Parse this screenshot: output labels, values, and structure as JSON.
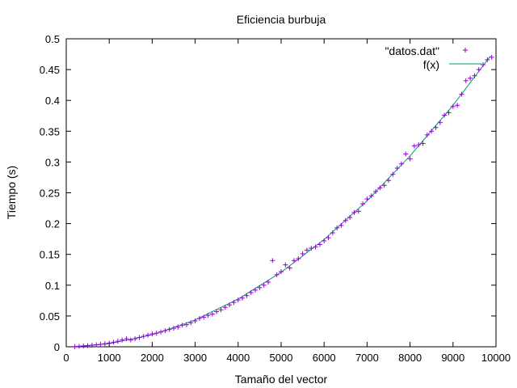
{
  "chart_data": {
    "type": "scatter",
    "title": "Eficiencia burbuja",
    "xlabel": "Tamaño del vector",
    "ylabel": "Tiempo (s)",
    "xlim": [
      0,
      10000
    ],
    "ylim": [
      0,
      0.5
    ],
    "x_ticks": [
      0,
      1000,
      2000,
      3000,
      4000,
      5000,
      6000,
      7000,
      8000,
      9000,
      10000
    ],
    "x_tick_labels": [
      "0",
      "1000",
      "2000",
      "3000",
      "4000",
      "5000",
      "6000",
      "7000",
      "8000",
      "9000",
      "10000"
    ],
    "y_ticks": [
      0,
      0.05,
      0.1,
      0.15,
      0.2,
      0.25,
      0.3,
      0.35,
      0.4,
      0.45,
      0.5
    ],
    "y_tick_labels": [
      "0",
      "0.05",
      "0.1",
      "0.15",
      "0.2",
      "0.25",
      "0.3",
      "0.35",
      "0.4",
      "0.45",
      "0.5"
    ],
    "grid": false,
    "legend_position": "top-right",
    "series": [
      {
        "name": "\"datos.dat\"",
        "style": "points",
        "marker": "plus",
        "color": "#9400d3",
        "points": [
          [
            200,
            0.0003
          ],
          [
            300,
            0.0008
          ],
          [
            400,
            0.0012
          ],
          [
            500,
            0.0018
          ],
          [
            600,
            0.0025
          ],
          [
            700,
            0.0032
          ],
          [
            800,
            0.004
          ],
          [
            900,
            0.005
          ],
          [
            1000,
            0.006
          ],
          [
            1100,
            0.0075
          ],
          [
            1200,
            0.009
          ],
          [
            1300,
            0.011
          ],
          [
            1400,
            0.013
          ],
          [
            1500,
            0.011
          ],
          [
            1600,
            0.013
          ],
          [
            1700,
            0.015
          ],
          [
            1800,
            0.017
          ],
          [
            1900,
            0.019
          ],
          [
            2000,
            0.021
          ],
          [
            2100,
            0.022
          ],
          [
            2200,
            0.024
          ],
          [
            2300,
            0.026
          ],
          [
            2400,
            0.028
          ],
          [
            2500,
            0.03
          ],
          [
            2600,
            0.032
          ],
          [
            2700,
            0.035
          ],
          [
            2800,
            0.036
          ],
          [
            2900,
            0.039
          ],
          [
            3000,
            0.042
          ],
          [
            3100,
            0.046
          ],
          [
            3200,
            0.048
          ],
          [
            3300,
            0.051
          ],
          [
            3400,
            0.053
          ],
          [
            3500,
            0.057
          ],
          [
            3600,
            0.06
          ],
          [
            3700,
            0.064
          ],
          [
            3800,
            0.068
          ],
          [
            3900,
            0.072
          ],
          [
            4000,
            0.076
          ],
          [
            4100,
            0.079
          ],
          [
            4200,
            0.083
          ],
          [
            4300,
            0.088
          ],
          [
            4400,
            0.092
          ],
          [
            4500,
            0.096
          ],
          [
            4600,
            0.1
          ],
          [
            4700,
            0.105
          ],
          [
            4800,
            0.14
          ],
          [
            4900,
            0.117
          ],
          [
            5000,
            0.122
          ],
          [
            5100,
            0.133
          ],
          [
            5200,
            0.128
          ],
          [
            5300,
            0.14
          ],
          [
            5400,
            0.143
          ],
          [
            5500,
            0.151
          ],
          [
            5600,
            0.157
          ],
          [
            5700,
            0.16
          ],
          [
            5800,
            0.162
          ],
          [
            5900,
            0.166
          ],
          [
            6000,
            0.172
          ],
          [
            6100,
            0.177
          ],
          [
            6200,
            0.185
          ],
          [
            6300,
            0.193
          ],
          [
            6400,
            0.197
          ],
          [
            6500,
            0.205
          ],
          [
            6600,
            0.21
          ],
          [
            6700,
            0.218
          ],
          [
            6800,
            0.22
          ],
          [
            6900,
            0.232
          ],
          [
            7000,
            0.24
          ],
          [
            7100,
            0.245
          ],
          [
            7200,
            0.252
          ],
          [
            7300,
            0.258
          ],
          [
            7400,
            0.262
          ],
          [
            7500,
            0.27
          ],
          [
            7600,
            0.28
          ],
          [
            7700,
            0.29
          ],
          [
            7800,
            0.297
          ],
          [
            7900,
            0.313
          ],
          [
            8000,
            0.305
          ],
          [
            8100,
            0.326
          ],
          [
            8200,
            0.328
          ],
          [
            8300,
            0.33
          ],
          [
            8400,
            0.344
          ],
          [
            8500,
            0.35
          ],
          [
            8600,
            0.356
          ],
          [
            8700,
            0.364
          ],
          [
            8800,
            0.376
          ],
          [
            8900,
            0.38
          ],
          [
            9000,
            0.39
          ],
          [
            9100,
            0.392
          ],
          [
            9200,
            0.41
          ],
          [
            9300,
            0.432
          ],
          [
            9400,
            0.436
          ],
          [
            9500,
            0.44
          ],
          [
            9600,
            0.45
          ],
          [
            9700,
            0.458
          ],
          [
            9800,
            0.466
          ],
          [
            9900,
            0.47
          ]
        ]
      },
      {
        "name": "f(x)",
        "style": "line",
        "color": "#009e73",
        "points": [
          [
            200,
            0.0002
          ],
          [
            1000,
            0.0049
          ],
          [
            2000,
            0.0194
          ],
          [
            3000,
            0.0436
          ],
          [
            4000,
            0.0775
          ],
          [
            5000,
            0.121
          ],
          [
            6000,
            0.174
          ],
          [
            7000,
            0.237
          ],
          [
            8000,
            0.31
          ],
          [
            9000,
            0.392
          ],
          [
            9870,
            0.472
          ]
        ]
      }
    ]
  }
}
